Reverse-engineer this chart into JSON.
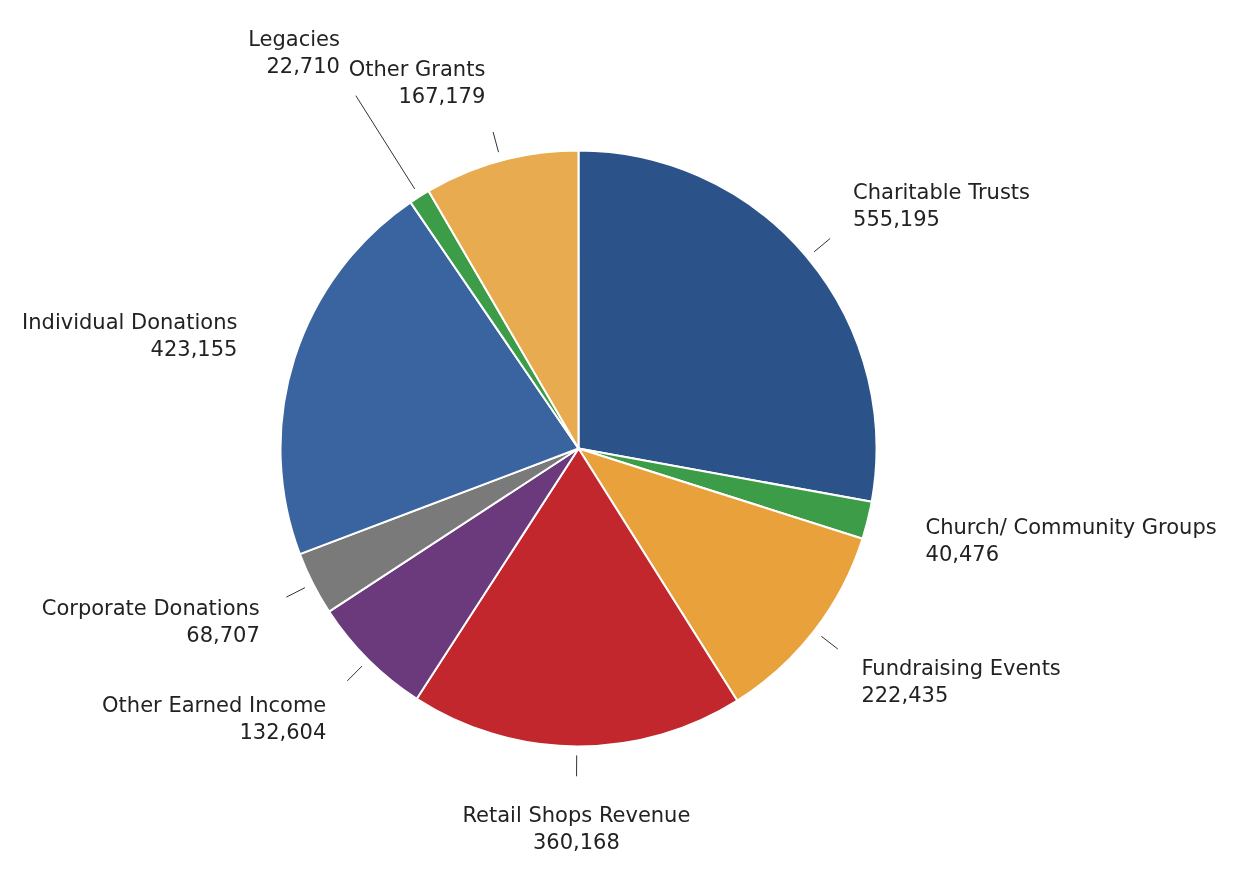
{
  "chart_data": {
    "type": "pie",
    "categories": [
      "Charitable Trusts",
      "Church/ Community Groups",
      "Fundraising Events",
      "Retail Shops Revenue",
      "Other Earned Income",
      "Corporate Donations",
      "Individual Donations",
      "Legacies",
      "Other Grants"
    ],
    "values": [
      555195,
      40476,
      222435,
      360168,
      132604,
      68707,
      423155,
      22710,
      167179
    ],
    "colors": [
      "#2b5289",
      "#3d9c47",
      "#e9a23b",
      "#c1272d",
      "#6a3a7c",
      "#7a7a7a",
      "#3a64a0",
      "#3d9c47",
      "#e9ab4f"
    ],
    "value_labels": [
      "555,195",
      "40,476",
      "222,435",
      "360,168",
      "132,604",
      "68,707",
      "423,155",
      "22,710",
      "167,179"
    ]
  }
}
